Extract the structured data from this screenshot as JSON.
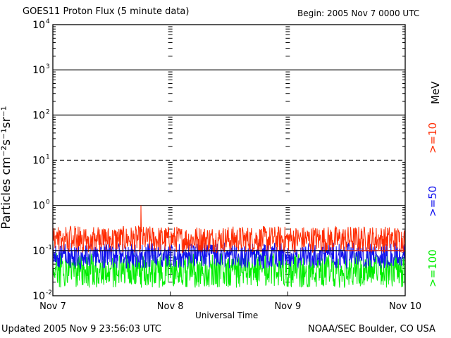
{
  "header": {
    "title": "GOES11 Proton Flux (5 minute data)",
    "begin": "Begin: 2005 Nov 7 0000 UTC"
  },
  "footer": {
    "updated": "Updated 2005 Nov  9 23:56:03 UTC",
    "credit": "NOAA/SEC Boulder, CO USA"
  },
  "colors": {
    "ge10": "#ff2a00",
    "ge50": "#1111ee",
    "ge100": "#00ee00",
    "axis": "#000000",
    "background": "#ffffff"
  },
  "chart_data": {
    "type": "line",
    "title": "GOES11 Proton Flux (5 minute data)",
    "subtitle": "Begin: 2005 Nov 7 0000 UTC",
    "xlabel": "Universal Time",
    "ylabel": "Particles cm⁻²s⁻¹sr⁻¹",
    "y_scale": "log",
    "ylim": [
      0.01,
      10000
    ],
    "y_ticks": [
      {
        "value": 0.01,
        "mant": "10",
        "exp": "-2"
      },
      {
        "value": 0.1,
        "mant": "10",
        "exp": "-1"
      },
      {
        "value": 1,
        "mant": "10",
        "exp": "0"
      },
      {
        "value": 10,
        "mant": "10",
        "exp": "1"
      },
      {
        "value": 100,
        "mant": "10",
        "exp": "2"
      },
      {
        "value": 1000,
        "mant": "10",
        "exp": "3"
      },
      {
        "value": 10000,
        "mant": "10",
        "exp": "4"
      }
    ],
    "x_ticks": [
      "Nov 7",
      "Nov 8",
      "Nov 9",
      "Nov 10"
    ],
    "xlim": [
      "2005-11-07",
      "2005-11-10"
    ],
    "legend_unit": "MeV",
    "legend_placement": "right",
    "series": [
      {
        "name": ">=10",
        "color": "#ff2a00",
        "typical_range": [
          0.09,
          0.35
        ],
        "peak": {
          "x": "2005-11-07T18:00",
          "y": 1.0
        }
      },
      {
        "name": ">=50",
        "color": "#1111ee",
        "typical_range": [
          0.04,
          0.15
        ]
      },
      {
        "name": ">=100",
        "color": "#00ee00",
        "typical_range": [
          0.015,
          0.09
        ]
      }
    ],
    "threshold_lines": [
      {
        "y": 10,
        "style": "dashed"
      },
      {
        "y": 0.1,
        "style": "solid",
        "color": "#ff2a00"
      }
    ]
  }
}
